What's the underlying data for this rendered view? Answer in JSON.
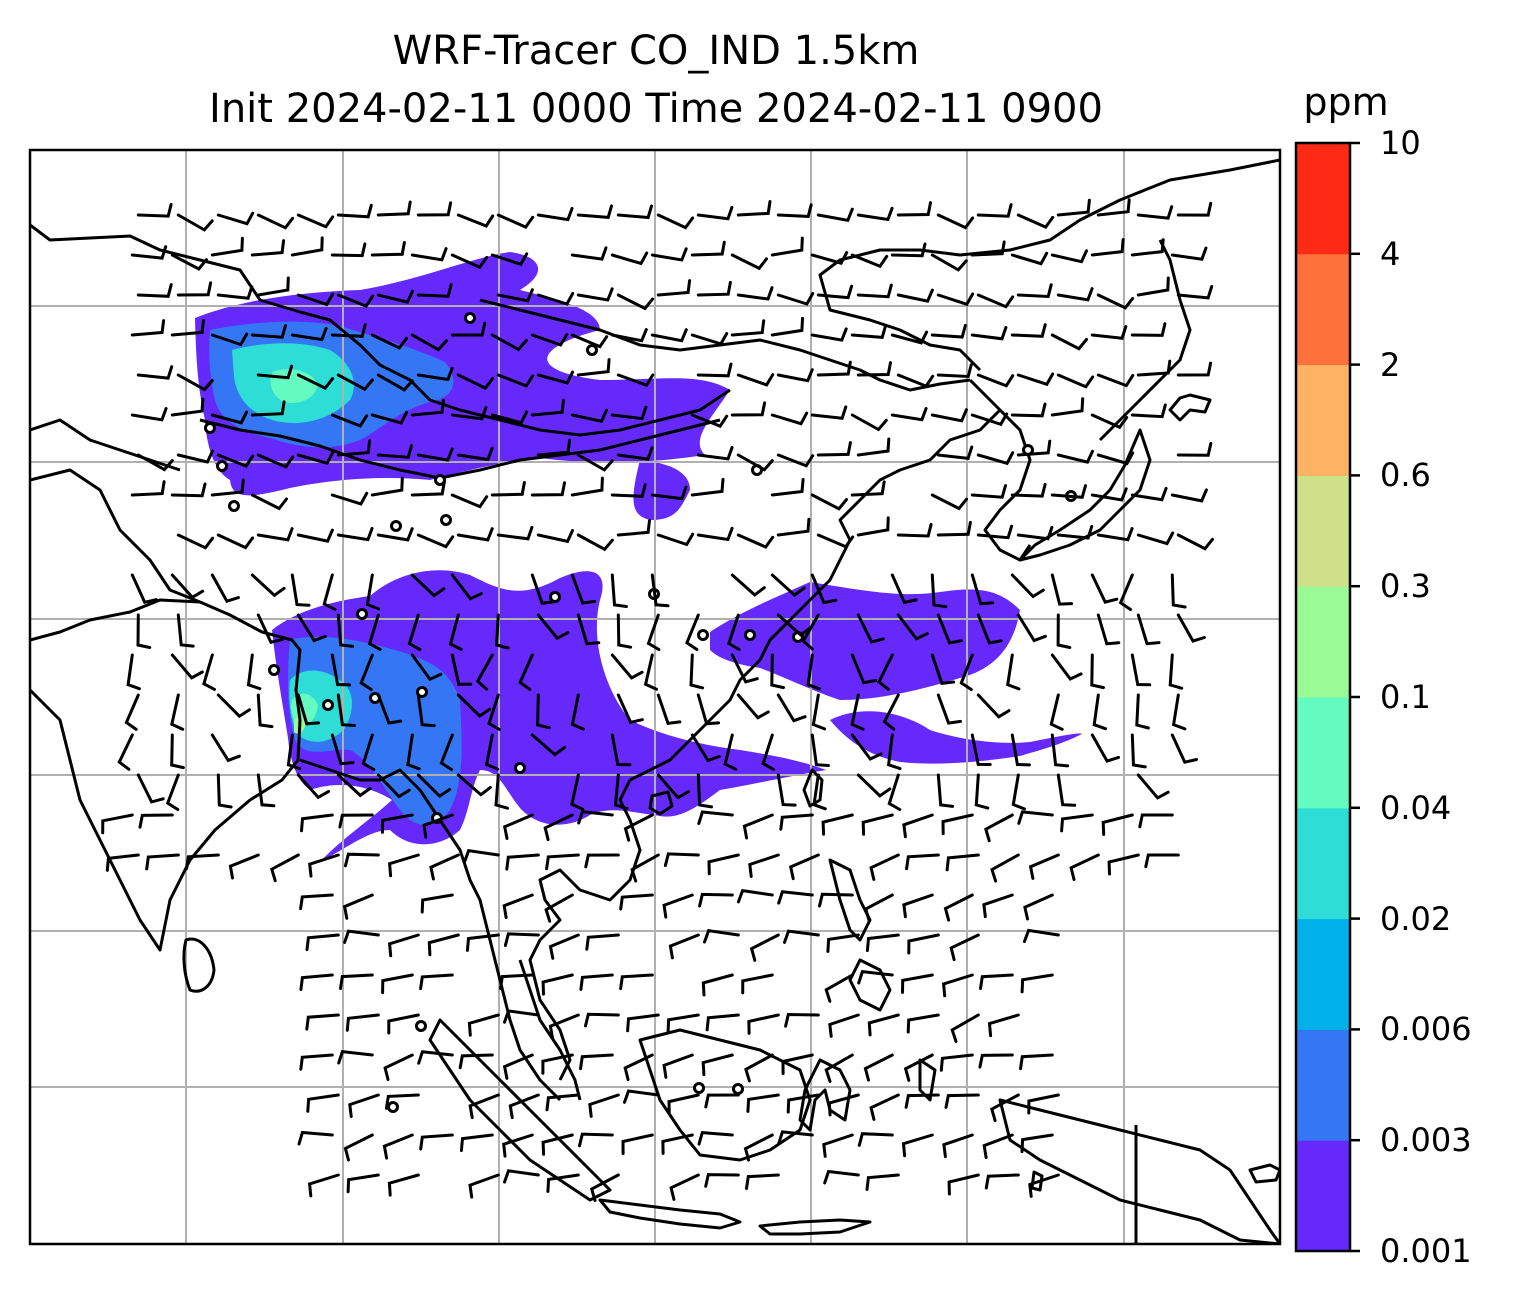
{
  "title": {
    "line1": "WRF-Tracer CO_IND 1.5km",
    "line2": "Init 2024-02-11 0000 Time 2024-02-11 0900"
  },
  "colorbar": {
    "unit": "ppm",
    "levels": [
      "0.001",
      "0.003",
      "0.006",
      "0.02",
      "0.04",
      "0.1",
      "0.3",
      "0.6",
      "2",
      "4",
      "10"
    ],
    "colors": [
      "#6529fb",
      "#3476f4",
      "#00b1ea",
      "#2dddd6",
      "#64fbc1",
      "#9afa96",
      "#cee189",
      "#fdb363",
      "#ff713a",
      "#ff2a15"
    ]
  },
  "map": {
    "background": "#ffffff",
    "gridline_color": "#b0b0b0",
    "coastline_color": "#000000",
    "station_marker": "open-circle",
    "wind_symbol": "barb"
  }
}
